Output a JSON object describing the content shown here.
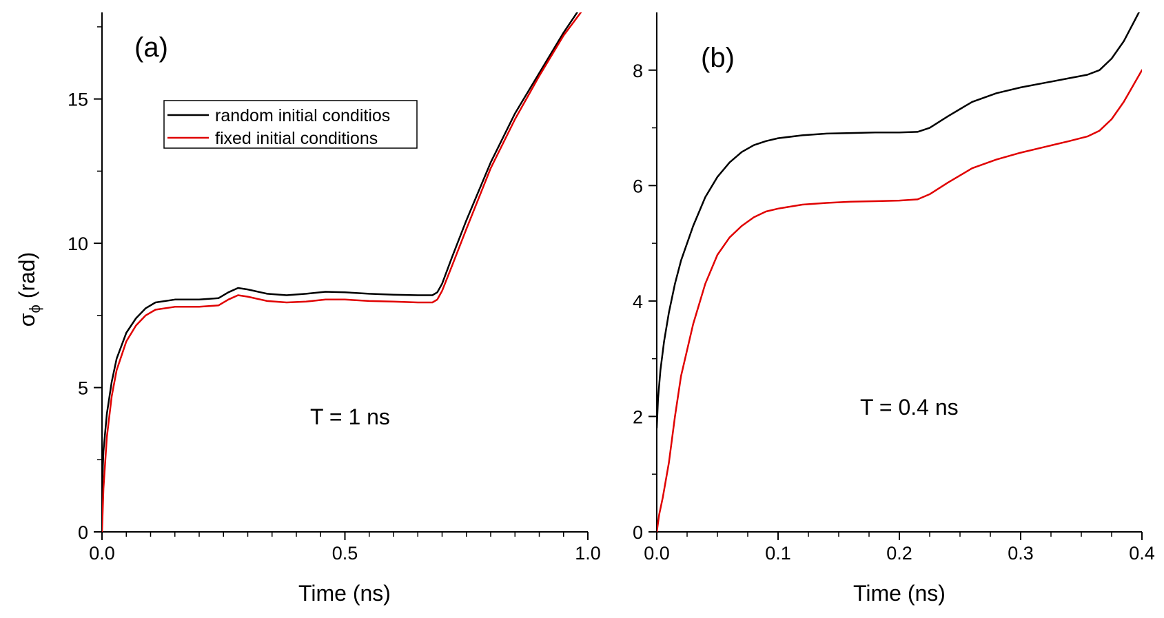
{
  "chart_data": [
    {
      "type": "line",
      "panel_label": "(a)",
      "xlabel": "Time (ns)",
      "ylabel": "σ",
      "ylabel_subscript": "ϕ",
      "ylabel_unit": " (rad)",
      "xlim": [
        0,
        1.0
      ],
      "ylim": [
        0,
        18
      ],
      "xticks": [
        0,
        0.5,
        1.0
      ],
      "xtick_labels": [
        "0.0",
        "0.5",
        "1.0"
      ],
      "yticks": [
        0,
        5,
        10,
        15
      ],
      "ytick_labels": [
        "0",
        "5",
        "10",
        "15"
      ],
      "annotation": "T = 1 ns",
      "legend": [
        {
          "label": "random initial conditios",
          "color": "#000000"
        },
        {
          "label": "fixed initial conditions",
          "color": "#e00000"
        }
      ],
      "series": [
        {
          "name": "random initial conditios",
          "color": "#000000",
          "x": [
            0,
            0.003,
            0.01,
            0.02,
            0.03,
            0.05,
            0.07,
            0.09,
            0.11,
            0.15,
            0.2,
            0.24,
            0.26,
            0.28,
            0.3,
            0.34,
            0.38,
            0.42,
            0.46,
            0.5,
            0.55,
            0.6,
            0.65,
            0.68,
            0.69,
            0.7,
            0.72,
            0.75,
            0.8,
            0.85,
            0.9,
            0.95,
            0.99
          ],
          "y": [
            1.5,
            2.8,
            4.1,
            5.2,
            6.0,
            6.9,
            7.4,
            7.75,
            7.95,
            8.05,
            8.05,
            8.1,
            8.3,
            8.45,
            8.4,
            8.25,
            8.2,
            8.25,
            8.32,
            8.3,
            8.25,
            8.22,
            8.2,
            8.2,
            8.3,
            8.6,
            9.5,
            10.8,
            12.8,
            14.5,
            15.9,
            17.3,
            18.3
          ]
        },
        {
          "name": "fixed initial conditions",
          "color": "#e00000",
          "x": [
            0,
            0.003,
            0.01,
            0.02,
            0.03,
            0.05,
            0.07,
            0.09,
            0.11,
            0.15,
            0.2,
            0.24,
            0.26,
            0.28,
            0.3,
            0.34,
            0.38,
            0.42,
            0.46,
            0.5,
            0.55,
            0.6,
            0.65,
            0.68,
            0.69,
            0.7,
            0.72,
            0.75,
            0.8,
            0.85,
            0.9,
            0.95,
            0.99
          ],
          "y": [
            0,
            1.5,
            3.3,
            4.7,
            5.6,
            6.6,
            7.15,
            7.5,
            7.7,
            7.8,
            7.8,
            7.85,
            8.05,
            8.2,
            8.15,
            8.0,
            7.95,
            7.98,
            8.05,
            8.05,
            8.0,
            7.98,
            7.95,
            7.95,
            8.05,
            8.35,
            9.2,
            10.5,
            12.6,
            14.3,
            15.8,
            17.2,
            18.1
          ]
        }
      ]
    },
    {
      "type": "line",
      "panel_label": "(b)",
      "xlabel": "Time (ns)",
      "xlim": [
        0,
        0.4
      ],
      "ylim": [
        0,
        9
      ],
      "xticks": [
        0,
        0.1,
        0.2,
        0.3,
        0.4
      ],
      "xtick_labels": [
        "0.0",
        "0.1",
        "0.2",
        "0.3",
        "0.4"
      ],
      "yticks": [
        0,
        2,
        4,
        6,
        8
      ],
      "ytick_labels": [
        "0",
        "2",
        "4",
        "6",
        "8"
      ],
      "annotation": "T = 0.4 ns",
      "series": [
        {
          "name": "random initial conditios",
          "color": "#000000",
          "x": [
            0,
            0.001,
            0.003,
            0.006,
            0.01,
            0.015,
            0.02,
            0.03,
            0.04,
            0.05,
            0.06,
            0.07,
            0.08,
            0.09,
            0.1,
            0.12,
            0.14,
            0.16,
            0.18,
            0.2,
            0.215,
            0.225,
            0.24,
            0.26,
            0.28,
            0.3,
            0.32,
            0.34,
            0.355,
            0.365,
            0.375,
            0.385,
            0.4
          ],
          "y": [
            1.8,
            2.3,
            2.8,
            3.3,
            3.8,
            4.3,
            4.7,
            5.3,
            5.8,
            6.15,
            6.4,
            6.58,
            6.7,
            6.77,
            6.82,
            6.87,
            6.9,
            6.91,
            6.92,
            6.92,
            6.93,
            7.0,
            7.2,
            7.45,
            7.6,
            7.7,
            7.78,
            7.86,
            7.92,
            8.0,
            8.2,
            8.5,
            9.1
          ]
        },
        {
          "name": "fixed initial conditions",
          "color": "#e00000",
          "x": [
            0,
            0.002,
            0.005,
            0.01,
            0.015,
            0.02,
            0.03,
            0.04,
            0.05,
            0.06,
            0.07,
            0.08,
            0.09,
            0.1,
            0.12,
            0.14,
            0.16,
            0.18,
            0.2,
            0.215,
            0.225,
            0.24,
            0.26,
            0.28,
            0.3,
            0.32,
            0.34,
            0.355,
            0.365,
            0.375,
            0.385,
            0.4
          ],
          "y": [
            0,
            0.3,
            0.6,
            1.2,
            2.0,
            2.7,
            3.6,
            4.3,
            4.8,
            5.1,
            5.3,
            5.45,
            5.55,
            5.6,
            5.67,
            5.7,
            5.72,
            5.73,
            5.74,
            5.76,
            5.85,
            6.05,
            6.3,
            6.45,
            6.57,
            6.67,
            6.77,
            6.85,
            6.95,
            7.15,
            7.45,
            8.0
          ]
        }
      ]
    }
  ]
}
